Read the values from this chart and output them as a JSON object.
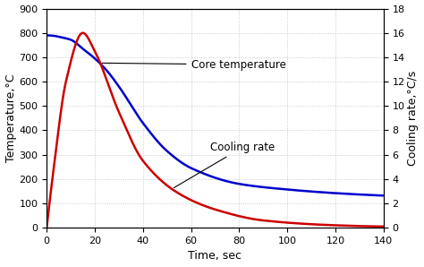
{
  "title": "",
  "xlabel": "Time, sec",
  "ylabel_left": "Temperature,°C",
  "ylabel_right": "Cooling rate,°C/s",
  "xlim": [
    0,
    140
  ],
  "ylim_left": [
    0,
    900
  ],
  "ylim_right": [
    0,
    18
  ],
  "xticks": [
    0,
    20,
    40,
    60,
    80,
    100,
    120,
    140
  ],
  "yticks_left": [
    0,
    100,
    200,
    300,
    400,
    500,
    600,
    700,
    800,
    900
  ],
  "yticks_right": [
    0,
    2,
    4,
    6,
    8,
    10,
    12,
    14,
    16,
    18
  ],
  "core_temp_label": "Core temperature",
  "cooling_rate_label": "Cooling rate",
  "blue_color": "#0000cc",
  "red_color": "#cc0000",
  "grid_color": "#c8c8c8",
  "background_color": "#ffffff",
  "annotation_fontsize": 8.5,
  "core_temp_params": {
    "base": 115,
    "amp": 675,
    "k": 0.028,
    "n": 3,
    "tau": 5
  },
  "cooling_rate_params": {
    "A": 46.0,
    "k": 0.068
  }
}
